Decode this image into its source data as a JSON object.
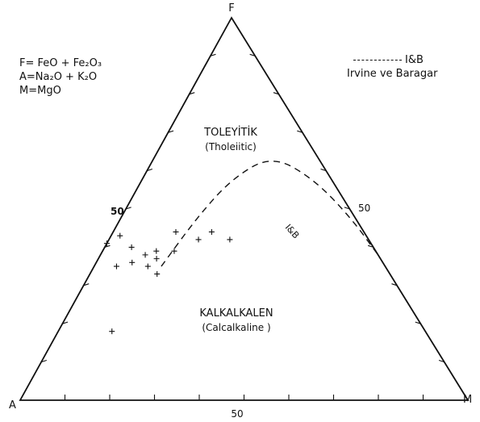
{
  "chart_data": {
    "type": "ternary",
    "vertices": {
      "top": "F",
      "left": "A",
      "right": "M"
    },
    "side_labels": {
      "left": "50",
      "right": "50",
      "bottom": "50"
    },
    "formulas": [
      "F= FeO + Fe₂O₃",
      "A=Na₂O + K₂O",
      "M=MgO"
    ],
    "fields": [
      {
        "name": "TOLEYİTİK",
        "subtitle": "(Tholeiitic)"
      },
      {
        "name": "KALKALKALEN",
        "subtitle": "(Calcalkaline )"
      }
    ],
    "boundary": {
      "label": "I&B",
      "legend": "Irvine ve Baragar",
      "legend_key": "I&B",
      "points_AFM": [
        [
          0.5,
          0.35,
          0.15
        ],
        [
          0.35,
          0.48,
          0.17
        ],
        [
          0.22,
          0.58,
          0.2
        ],
        [
          0.1,
          0.64,
          0.26
        ],
        [
          0.04,
          0.58,
          0.38
        ],
        [
          0.01,
          0.48,
          0.51
        ],
        [
          0.0,
          0.38,
          0.62
        ]
      ]
    },
    "samples_AFM": [
      [
        0.59,
        0.41,
        0.0
      ],
      [
        0.55,
        0.43,
        0.02
      ],
      [
        0.54,
        0.4,
        0.06
      ],
      [
        0.52,
        0.38,
        0.1
      ],
      [
        0.49,
        0.39,
        0.12
      ],
      [
        0.45,
        0.39,
        0.16
      ],
      [
        0.5,
        0.37,
        0.13
      ],
      [
        0.56,
        0.36,
        0.08
      ],
      [
        0.53,
        0.35,
        0.12
      ],
      [
        0.52,
        0.33,
        0.15
      ],
      [
        0.6,
        0.35,
        0.05
      ],
      [
        0.42,
        0.44,
        0.14
      ],
      [
        0.38,
        0.42,
        0.2
      ],
      [
        0.34,
        0.44,
        0.22
      ],
      [
        0.31,
        0.42,
        0.27
      ],
      [
        0.7,
        0.18,
        0.12
      ]
    ]
  }
}
